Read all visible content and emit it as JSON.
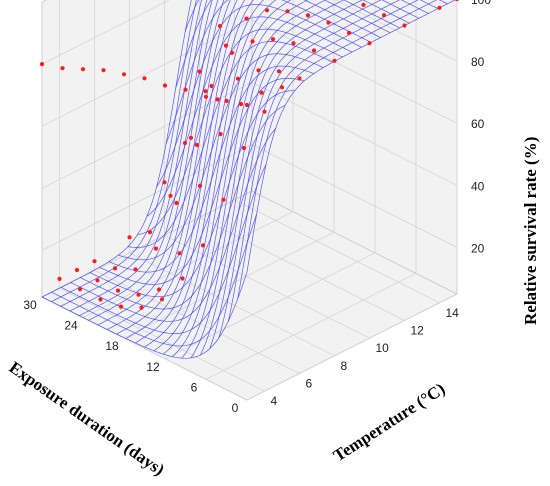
{
  "chart_data": {
    "type": "surface3d",
    "title": "",
    "xlabel": "Exposure duration (days)",
    "ylabel": "Temperature (°C)",
    "zlabel": "Relative survival rate (%)",
    "x_ticks": [
      "0",
      "6",
      "12",
      "18",
      "24",
      "30"
    ],
    "y_ticks": [
      "4",
      "6",
      "8",
      "10",
      "12",
      "14"
    ],
    "z_ticks": [
      "20",
      "40",
      "60",
      "80",
      "100"
    ],
    "xlim": [
      0,
      30
    ],
    "ylim": [
      3,
      15
    ],
    "zlim": [
      5,
      100
    ],
    "grid": true,
    "surface_color": "#3b3bff",
    "point_color": "#ff1a1a",
    "pane_color": "#f2f2f2",
    "surface_model": {
      "description_free_params": true,
      "z_max": 100,
      "z_min": 5,
      "y_midpoint_at_x0": 3.2,
      "y_midpoint_slope_per_day": 0.25,
      "y_width": 0.75
    },
    "observed_points": [
      {
        "temperature": 3,
        "days": [
          0,
          3,
          6,
          9,
          12,
          15,
          18,
          21,
          24,
          27,
          30
        ],
        "survival": [
          100,
          98,
          96,
          95,
          93,
          92,
          90,
          88,
          85,
          82,
          80
        ]
      },
      {
        "temperature": 4,
        "days": [
          0,
          3,
          6,
          9,
          12,
          15,
          18,
          21,
          24,
          27,
          30
        ],
        "survival": [
          95,
          80,
          60,
          42,
          28,
          18,
          12,
          9,
          8,
          8,
          8
        ]
      },
      {
        "temperature": 5,
        "days": [
          0,
          3,
          6,
          9,
          12,
          15,
          18,
          21,
          24,
          27,
          30
        ],
        "survival": [
          100,
          95,
          88,
          75,
          55,
          30,
          15,
          10,
          8,
          8,
          8
        ]
      },
      {
        "temperature": 6,
        "days": [
          0,
          3,
          6,
          9,
          12,
          15,
          18,
          21,
          24,
          27,
          30
        ],
        "survival": [
          100,
          99,
          96,
          90,
          80,
          62,
          40,
          22,
          12,
          9,
          8
        ]
      },
      {
        "temperature": 8,
        "days": [
          0,
          3,
          6,
          9,
          12,
          15,
          18,
          21,
          24,
          27,
          30
        ],
        "survival": [
          100,
          100,
          99,
          97,
          93,
          86,
          72,
          52,
          30,
          15,
          10
        ]
      },
      {
        "temperature": 10,
        "days": [
          0,
          3,
          6,
          9,
          12,
          15,
          18,
          21,
          24,
          27,
          30
        ],
        "survival": [
          100,
          100,
          100,
          99,
          97,
          94,
          88,
          76,
          58,
          38,
          22
        ]
      },
      {
        "temperature": 12,
        "days": [
          0,
          3,
          6,
          9,
          12,
          15,
          18,
          21,
          24,
          27,
          30
        ],
        "survival": [
          100,
          100,
          100,
          100,
          99,
          98,
          96,
          92,
          84,
          70,
          52
        ]
      },
      {
        "temperature": 14,
        "days": [
          0,
          3,
          6,
          9,
          12,
          15,
          18,
          21,
          24,
          27,
          30
        ],
        "survival": [
          100,
          100,
          100,
          100,
          100,
          99,
          98,
          97,
          94,
          88,
          78
        ]
      },
      {
        "temperature": 15,
        "days": [
          0,
          3,
          6,
          9,
          12,
          15,
          18,
          21,
          24,
          27,
          30
        ],
        "survival": [
          100,
          100,
          100,
          100,
          100,
          100,
          100,
          99,
          99,
          98,
          96
        ]
      }
    ]
  }
}
